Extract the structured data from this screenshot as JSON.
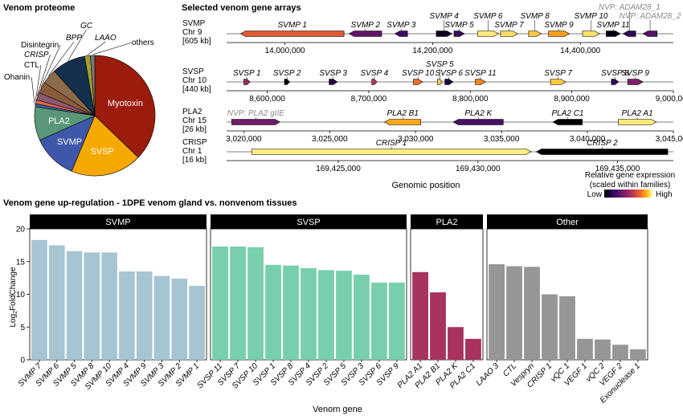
{
  "pie": {
    "title": "Venom proteome",
    "slices": [
      {
        "label": "Myotoxin",
        "value": 37.0,
        "color": "#9b1b0d"
      },
      {
        "label": "SVSP",
        "value": 19.0,
        "color": "#f5a800"
      },
      {
        "label": "SVMP",
        "value": 12.0,
        "color": "#3f57a8"
      },
      {
        "label": "PLA2",
        "value": 9.0,
        "color": "#5a9778"
      },
      {
        "label": "Ohanin",
        "value": 0.8,
        "color": "#3a62a8"
      },
      {
        "label": "CTL",
        "value": 1.0,
        "color": "#e8684a"
      },
      {
        "label": "CRISP",
        "value": 2.0,
        "color": "#8b5a70"
      },
      {
        "label": "Disintegrin",
        "value": 3.0,
        "color": "#8c5c3a"
      },
      {
        "label": "BPP",
        "value": 4.0,
        "color": "#8d6a4a"
      },
      {
        "label": "GC",
        "value": 9.0,
        "color": "#14304c"
      },
      {
        "label": "LAAO",
        "value": 1.5,
        "color": "#a6a12e"
      },
      {
        "label": "others",
        "value": 1.2,
        "color": "#777777"
      }
    ]
  },
  "gene_arrays": {
    "title": "Selected venom gene arrays",
    "xlabel": "Genomic position",
    "legend": {
      "title_line1": "Relative gene expression",
      "title_line2": "(scaled within families)",
      "low": "Low",
      "high": "High"
    },
    "tracks": [
      {
        "family": "SVMP",
        "chr": "Chr 9",
        "size": "[605 kb]",
        "range": [
          13921000,
          14526000
        ],
        "ticks": [
          14000000,
          14200000,
          14400000
        ],
        "tick_labels": [
          "14,000,000",
          "14,200,000",
          "14,400,000"
        ],
        "genes": [
          {
            "name": "SVMP 1",
            "start": 13940000,
            "end": 14080000,
            "strand": "-",
            "expr": 0.62,
            "label_row": 0
          },
          {
            "name": "SVMP 2",
            "start": 14087000,
            "end": 14131000,
            "strand": "-",
            "expr": 0.28,
            "label_row": 0
          },
          {
            "name": "SVMP 3",
            "start": 14149000,
            "end": 14166000,
            "strand": "-",
            "expr": 0.2,
            "label_row": 0
          },
          {
            "name": "SVMP 4",
            "start": 14205000,
            "end": 14226000,
            "strand": "+",
            "expr": 0.05,
            "label_row": 1
          },
          {
            "name": "SVMP 5",
            "start": 14229000,
            "end": 14243000,
            "strand": "+",
            "expr": 0.18,
            "label_row": 0
          },
          {
            "name": "SVMP 6",
            "start": 14261000,
            "end": 14289000,
            "strand": "+",
            "expr": 0.95,
            "label_row": 1
          },
          {
            "name": "SVMP 7",
            "start": 14292000,
            "end": 14315000,
            "strand": "+",
            "expr": 0.92,
            "label_row": 0
          },
          {
            "name": "SVMP 8",
            "start": 14330000,
            "end": 14347000,
            "strand": "+",
            "expr": 0.88,
            "label_row": 1
          },
          {
            "name": "SVMP 9",
            "start": 14357000,
            "end": 14385000,
            "strand": "+",
            "expr": 0.78,
            "label_row": 0
          },
          {
            "name": "SVMP 10",
            "start": 14403000,
            "end": 14426000,
            "strand": "+",
            "expr": 0.93,
            "label_row": 1
          },
          {
            "name": "SVMP 11",
            "start": 14435000,
            "end": 14454000,
            "strand": "+",
            "expr": 0.02,
            "label_row": 0
          },
          {
            "name": "NVP: ADAM28_1",
            "start": 14458000,
            "end": 14475000,
            "strand": "-",
            "expr": 0.15,
            "label_row": 2,
            "nvp": true
          },
          {
            "name": "NVP: ADAM28_2",
            "start": 14485000,
            "end": 14504000,
            "strand": "-",
            "expr": 0.25,
            "label_row": 1,
            "nvp": true
          }
        ]
      },
      {
        "family": "SVSP",
        "chr": "Chr 10",
        "size": "[440 kb]",
        "range": [
          8560000,
          9000000
        ],
        "ticks": [
          8600000,
          8700000,
          8800000,
          8900000,
          9000000
        ],
        "tick_labels": [
          "8,600,000",
          "8,700,000",
          "8,800,000",
          "8,900,000",
          "9,000,000"
        ],
        "genes": [
          {
            "name": "SVSP 1",
            "start": 8577000,
            "end": 8583000,
            "strand": "+",
            "expr": 0.42,
            "label_row": 0
          },
          {
            "name": "SVSP 2",
            "start": 8617000,
            "end": 8622000,
            "strand": "+",
            "expr": 0.02,
            "label_row": 0
          },
          {
            "name": "SVSP 3",
            "start": 8661000,
            "end": 8669000,
            "strand": "+",
            "expr": 0.12,
            "label_row": 0
          },
          {
            "name": "SVSP 4",
            "start": 8703000,
            "end": 8708000,
            "strand": "+",
            "expr": 0.5,
            "label_row": 0
          },
          {
            "name": "SVSP 10",
            "start": 8744000,
            "end": 8753000,
            "strand": "+",
            "expr": 0.68,
            "label_row": 0
          },
          {
            "name": "SVSP 5",
            "start": 8768000,
            "end": 8772000,
            "strand": "+",
            "expr": 0.9,
            "label_row": 1
          },
          {
            "name": "SVSP 6",
            "start": 8775000,
            "end": 8783000,
            "strand": "+",
            "expr": 0.1,
            "label_row": 0
          },
          {
            "name": "SVSP 11",
            "start": 8805000,
            "end": 8815000,
            "strand": "+",
            "expr": 0.72,
            "label_row": 0
          },
          {
            "name": "SVSP 7",
            "start": 8879000,
            "end": 8894000,
            "strand": "+",
            "expr": 0.88,
            "label_row": 0
          },
          {
            "name": "SVSP 8",
            "start": 8939000,
            "end": 8946000,
            "strand": "+",
            "expr": 0.16,
            "label_row": 0
          },
          {
            "name": "SVSP 9",
            "start": 8955000,
            "end": 8970000,
            "strand": "+",
            "expr": 0.35,
            "label_row": 0
          }
        ]
      },
      {
        "family": "PLA2",
        "chr": "Chr 15",
        "size": "[26 kb]",
        "range": [
          3019000,
          3045000
        ],
        "ticks": [
          3020000,
          3025000,
          3030000,
          3035000,
          3040000,
          3045000
        ],
        "tick_labels": [
          "3,020,000",
          "3,025,000",
          "3,030,000",
          "3,035,000",
          "3,040,000",
          "3,045,000"
        ],
        "genes": [
          {
            "name": "NVP: PLA2 gIIE",
            "start": 3019300,
            "end": 3022100,
            "strand": "+",
            "expr": 0.32,
            "label_row": 0,
            "nvp": true
          },
          {
            "name": "PLA2 B1",
            "start": 3028200,
            "end": 3030300,
            "strand": "-",
            "expr": 0.8,
            "label_row": 0
          },
          {
            "name": "PLA2 K",
            "start": 3032200,
            "end": 3035100,
            "strand": "-",
            "expr": 0.22,
            "label_row": 0
          },
          {
            "name": "PLA2 C1",
            "start": 3038000,
            "end": 3039700,
            "strand": "-",
            "expr": 0.0,
            "label_row": 0
          },
          {
            "name": "PLA2 A1",
            "start": 3041800,
            "end": 3044000,
            "strand": "+",
            "expr": 0.95,
            "label_row": 0
          }
        ]
      },
      {
        "family": "CRISP",
        "chr": "Chr 1",
        "size": "[16 kb]",
        "range": [
          169421000,
          169437000
        ],
        "ticks": [
          169425000,
          169430000,
          169435000
        ],
        "tick_labels": [
          "169,425,000",
          "169,430,000",
          "169,435,000"
        ],
        "genes": [
          {
            "name": "CRISP 1",
            "start": 169421900,
            "end": 169431900,
            "strand": "+",
            "expr": 0.96,
            "label_row": 0
          },
          {
            "name": "CRISP 2",
            "start": 169432100,
            "end": 169436800,
            "strand": "-",
            "expr": 0.0,
            "label_row": 0
          }
        ]
      }
    ]
  },
  "chart_data": {
    "type": "bar",
    "title": "Venom gene up-regulation - 1DPE venom gland vs. nonvenom tissues",
    "xlabel": "Venom gene",
    "ylabel": "Log2FoldChange",
    "ylim": [
      0,
      20
    ],
    "yticks": [
      0,
      5,
      10,
      15,
      20
    ],
    "facets": [
      {
        "name": "SVMP",
        "color": "#a6c4d2",
        "categories": [
          "SVMP 7",
          "SVMP 6",
          "SVMP 5",
          "SVMP 8",
          "SVMP 10",
          "SVMP 4",
          "SVMP 9",
          "SVMP 3",
          "SVMP 2",
          "SVMP 1"
        ],
        "values": [
          18.3,
          17.5,
          16.6,
          16.4,
          16.4,
          13.5,
          13.5,
          12.8,
          12.4,
          11.3
        ]
      },
      {
        "name": "SVSP",
        "color": "#78cfac",
        "categories": [
          "SVSP 11",
          "SVSP 7",
          "SVSP 10",
          "SVSP 1",
          "SVSP 8",
          "SVSP 4",
          "SVSP 2",
          "SVSP 5",
          "SVSP 3",
          "SVSP 6",
          "SVSP 9"
        ],
        "values": [
          17.3,
          17.3,
          17.2,
          14.5,
          14.4,
          14.0,
          13.7,
          13.6,
          13.0,
          11.8,
          11.8
        ]
      },
      {
        "name": "PLA2",
        "color": "#a8335e",
        "categories": [
          "PLA2 A1",
          "PLA2 B1",
          "PLA2 K",
          "PLA2 C1"
        ],
        "values": [
          13.4,
          10.3,
          5.0,
          3.2
        ]
      },
      {
        "name": "Other",
        "color": "#969696",
        "categories": [
          "LAAO 3",
          "CTL",
          "Vespryn",
          "CRISP 1",
          "vQC 1",
          "VEGF 1",
          "vQC 2",
          "VEGF 2",
          "Exonuclease 1"
        ],
        "values": [
          14.6,
          14.3,
          14.2,
          10.0,
          9.7,
          3.2,
          3.1,
          2.3,
          1.6
        ]
      }
    ]
  }
}
